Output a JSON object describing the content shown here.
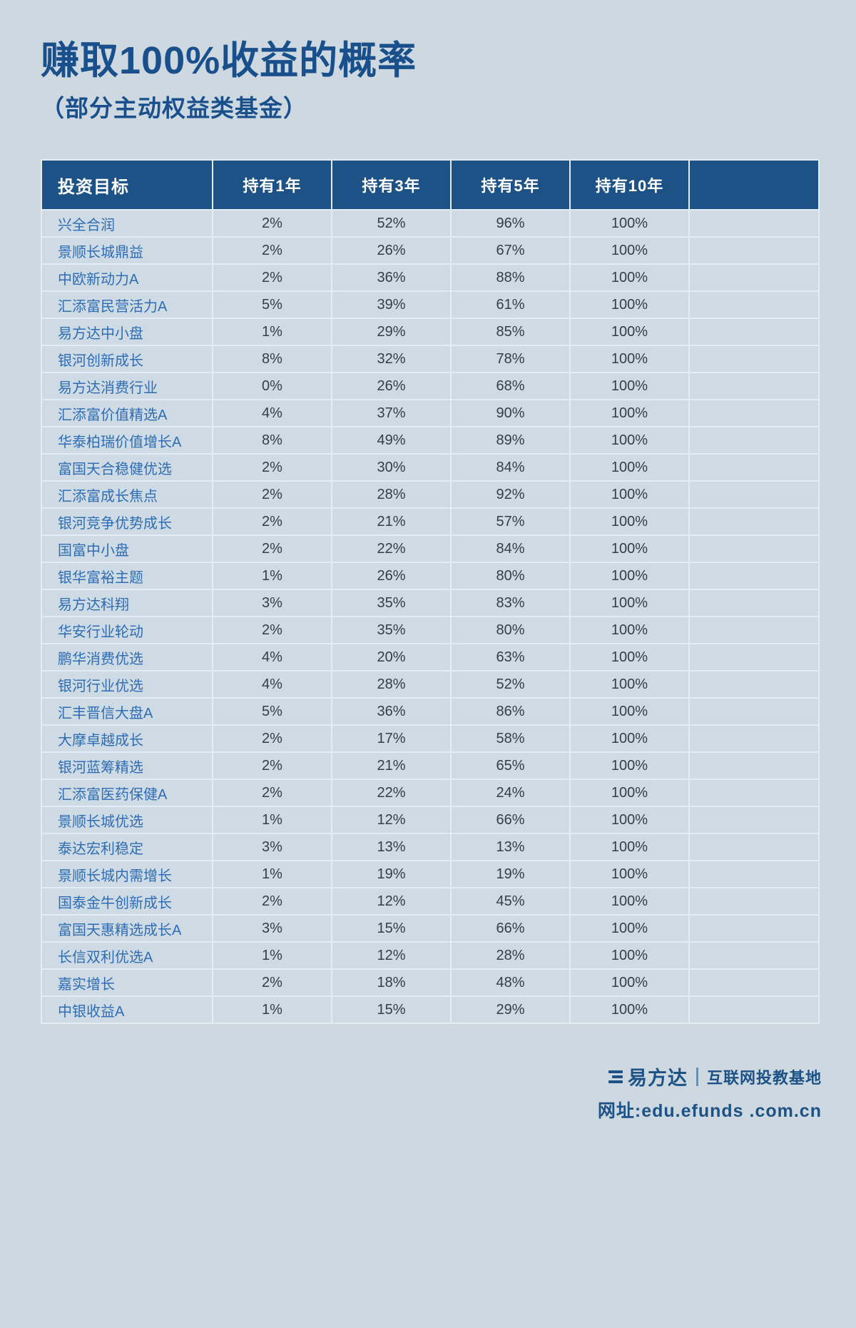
{
  "page": {
    "title": "赚取100%收益的概率",
    "subtitle": "（部分主动权益类基金）"
  },
  "chart_data": {
    "type": "table",
    "title": "赚取100%收益的概率",
    "subtitle": "（部分主动权益类基金）",
    "columns": [
      "投资目标",
      "持有1年",
      "持有3年",
      "持有5年",
      "持有10年"
    ],
    "rows": [
      [
        "兴全合润",
        "2%",
        "52%",
        "96%",
        "100%"
      ],
      [
        "景顺长城鼎益",
        "2%",
        "26%",
        "67%",
        "100%"
      ],
      [
        "中欧新动力A",
        "2%",
        "36%",
        "88%",
        "100%"
      ],
      [
        "汇添富民营活力A",
        "5%",
        "39%",
        "61%",
        "100%"
      ],
      [
        "易方达中小盘",
        "1%",
        "29%",
        "85%",
        "100%"
      ],
      [
        "银河创新成长",
        "8%",
        "32%",
        "78%",
        "100%"
      ],
      [
        "易方达消费行业",
        "0%",
        "26%",
        "68%",
        "100%"
      ],
      [
        "汇添富价值精选A",
        "4%",
        "37%",
        "90%",
        "100%"
      ],
      [
        "华泰柏瑞价值增长A",
        "8%",
        "49%",
        "89%",
        "100%"
      ],
      [
        "富国天合稳健优选",
        "2%",
        "30%",
        "84%",
        "100%"
      ],
      [
        "汇添富成长焦点",
        "2%",
        "28%",
        "92%",
        "100%"
      ],
      [
        "银河竞争优势成长",
        "2%",
        "21%",
        "57%",
        "100%"
      ],
      [
        "国富中小盘",
        "2%",
        "22%",
        "84%",
        "100%"
      ],
      [
        "银华富裕主题",
        "1%",
        "26%",
        "80%",
        "100%"
      ],
      [
        "易方达科翔",
        "3%",
        "35%",
        "83%",
        "100%"
      ],
      [
        "华安行业轮动",
        "2%",
        "35%",
        "80%",
        "100%"
      ],
      [
        "鹏华消费优选",
        "4%",
        "20%",
        "63%",
        "100%"
      ],
      [
        "银河行业优选",
        "4%",
        "28%",
        "52%",
        "100%"
      ],
      [
        "汇丰晋信大盘A",
        "5%",
        "36%",
        "86%",
        "100%"
      ],
      [
        "大摩卓越成长",
        "2%",
        "17%",
        "58%",
        "100%"
      ],
      [
        "银河蓝筹精选",
        "2%",
        "21%",
        "65%",
        "100%"
      ],
      [
        "汇添富医药保健A",
        "2%",
        "22%",
        "24%",
        "100%"
      ],
      [
        "景顺长城优选",
        "1%",
        "12%",
        "66%",
        "100%"
      ],
      [
        "泰达宏利稳定",
        "3%",
        "13%",
        "13%",
        "100%"
      ],
      [
        "景顺长城内需增长",
        "1%",
        "19%",
        "19%",
        "100%"
      ],
      [
        "国泰金牛创新成长",
        "2%",
        "12%",
        "45%",
        "100%"
      ],
      [
        "富国天惠精选成长A",
        "3%",
        "15%",
        "66%",
        "100%"
      ],
      [
        "长信双利优选A",
        "1%",
        "12%",
        "28%",
        "100%"
      ],
      [
        "嘉实增长",
        "2%",
        "18%",
        "48%",
        "100%"
      ],
      [
        "中银收益A",
        "1%",
        "15%",
        "29%",
        "100%"
      ]
    ]
  },
  "footer": {
    "brand": "易方达",
    "tagline": "互联网投教基地",
    "url": "网址:edu.efunds .com.cn"
  },
  "colors": {
    "page_bg": "#cdd8e1",
    "header_bg": "#1d5287",
    "title_text": "#19508c",
    "fund_name_text": "#2e6db3",
    "value_text": "#343d49"
  }
}
